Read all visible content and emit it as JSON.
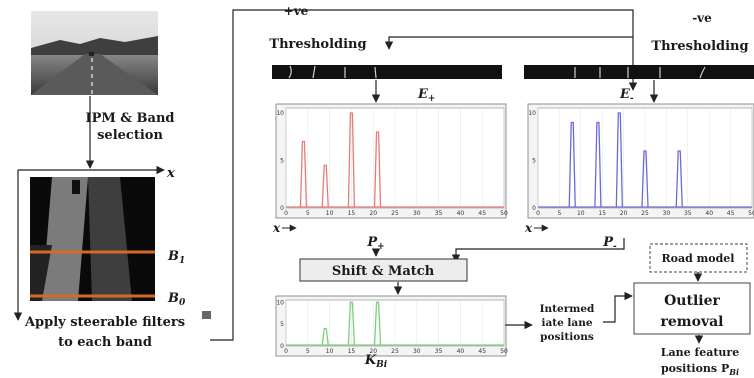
{
  "labels": {
    "ipm_band": [
      "IPM & Band",
      "selection"
    ],
    "axis_x": "x",
    "band_b1": "B",
    "band_b1_sub": "1",
    "band_b0": "B",
    "band_b0_sub": "0",
    "steerable": [
      "Apply steerable filters",
      "to each band"
    ],
    "pos_thresh": [
      "+ve",
      "Thresholding"
    ],
    "neg_thresh": [
      "-ve",
      "Thresholding"
    ],
    "e_plus": "E",
    "e_plus_sub": "+",
    "e_minus": "E",
    "e_minus_sub": "-",
    "p_plus": "P",
    "p_plus_sub": "+",
    "p_minus": "P",
    "p_minus_sub": "-",
    "x_arrow": "x",
    "shift_match": "Shift & Match",
    "k_bi": "K",
    "k_bi_sub": "Bi",
    "intermediate": [
      "Intermed",
      "iate lane",
      "positions"
    ],
    "road_model": "Road model",
    "outlier": [
      "Outlier",
      "removal"
    ],
    "lane_feature": [
      "Lane feature",
      "positions P"
    ],
    "lane_feature_sub": "Bi"
  },
  "colors": {
    "pos_plot": "#e87a7a",
    "neg_plot": "#6b6bd8",
    "k_plot": "#7ad07a",
    "band_line": "#d46a2a",
    "frame": "#555555"
  },
  "chart_data": [
    {
      "type": "line",
      "name": "P+",
      "x_ticks": [
        "0",
        "5",
        "10",
        "15",
        "20",
        "25",
        "30",
        "35",
        "40",
        "45",
        "50"
      ],
      "y_ticks": [
        "0",
        "5",
        "10"
      ],
      "peaks": [
        {
          "x": 4,
          "y": 7
        },
        {
          "x": 9,
          "y": 4.5
        },
        {
          "x": 15,
          "y": 10
        },
        {
          "x": 21,
          "y": 8
        }
      ],
      "xlim": [
        0,
        50
      ],
      "ylim": [
        0,
        10
      ]
    },
    {
      "type": "line",
      "name": "P-",
      "x_ticks": [
        "0",
        "5",
        "10",
        "15",
        "20",
        "25",
        "30",
        "35",
        "40",
        "45",
        "50"
      ],
      "y_ticks": [
        "0",
        "5",
        "10"
      ],
      "peaks": [
        {
          "x": 8,
          "y": 9
        },
        {
          "x": 14,
          "y": 9
        },
        {
          "x": 19,
          "y": 10
        },
        {
          "x": 25,
          "y": 6
        },
        {
          "x": 33,
          "y": 6
        }
      ],
      "xlim": [
        0,
        50
      ],
      "ylim": [
        0,
        10
      ]
    },
    {
      "type": "line",
      "name": "K_Bi",
      "x_ticks": [
        "0",
        "5",
        "10",
        "15",
        "20",
        "25",
        "30",
        "35",
        "40",
        "45",
        "50"
      ],
      "y_ticks": [
        "0",
        "5",
        "10"
      ],
      "peaks": [
        {
          "x": 9,
          "y": 4
        },
        {
          "x": 15,
          "y": 10
        },
        {
          "x": 21,
          "y": 10
        }
      ],
      "xlim": [
        0,
        50
      ],
      "ylim": [
        0,
        10
      ]
    }
  ]
}
